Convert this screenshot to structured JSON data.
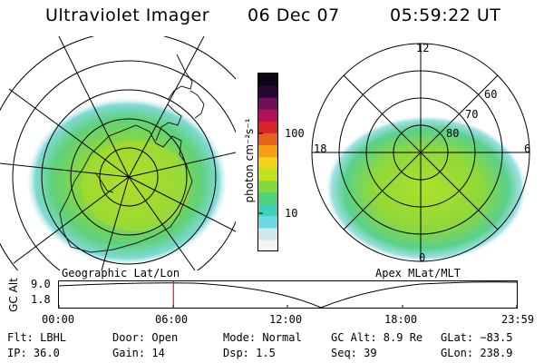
{
  "header": {
    "instrument": "Ultraviolet Imager",
    "date": "06 Dec 07",
    "time": "05:59:22 UT"
  },
  "left_panel": {
    "caption": "Geographic Lat/Lon"
  },
  "right_panel": {
    "caption": "Apex MLat/MLT",
    "mlt_labels": [
      "12",
      "6",
      "0",
      "18"
    ],
    "lat_labels": [
      "60",
      "70",
      "80"
    ]
  },
  "colorbar": {
    "unit": "photon cm⁻²s⁻¹",
    "ticks": [
      "100",
      "10"
    ],
    "colors": [
      "#f4f4f4",
      "#cfe9ec",
      "#6fd8e6",
      "#3ed2b8",
      "#4fd07a",
      "#86d83e",
      "#c0e21e",
      "#f3d01c",
      "#f59d14",
      "#e8611c",
      "#d8242c",
      "#b2115a",
      "#6e0f58",
      "#26082e",
      "#0a0616"
    ]
  },
  "altitude_strip": {
    "axis_label": "GC Alt",
    "y_labels": [
      "9.0",
      "1.8"
    ],
    "x_labels": [
      "00:00",
      "06:00",
      "12:00",
      "18:00",
      "23:59"
    ],
    "current_time_fraction": 0.25,
    "marker_color": "#c82020"
  },
  "status": {
    "flt": "Flt: LBHL",
    "ip": "IP: 36.0",
    "door": "Door: Open",
    "gain": "Gain: 14",
    "mode": "Mode: Normal",
    "dsp": "Dsp:    1.5",
    "gc_alt": "GC Alt: 8.9 Re",
    "seq": "Seq: 39",
    "glat": "GLat: −83.5",
    "glon": "GLon: 238.9"
  }
}
